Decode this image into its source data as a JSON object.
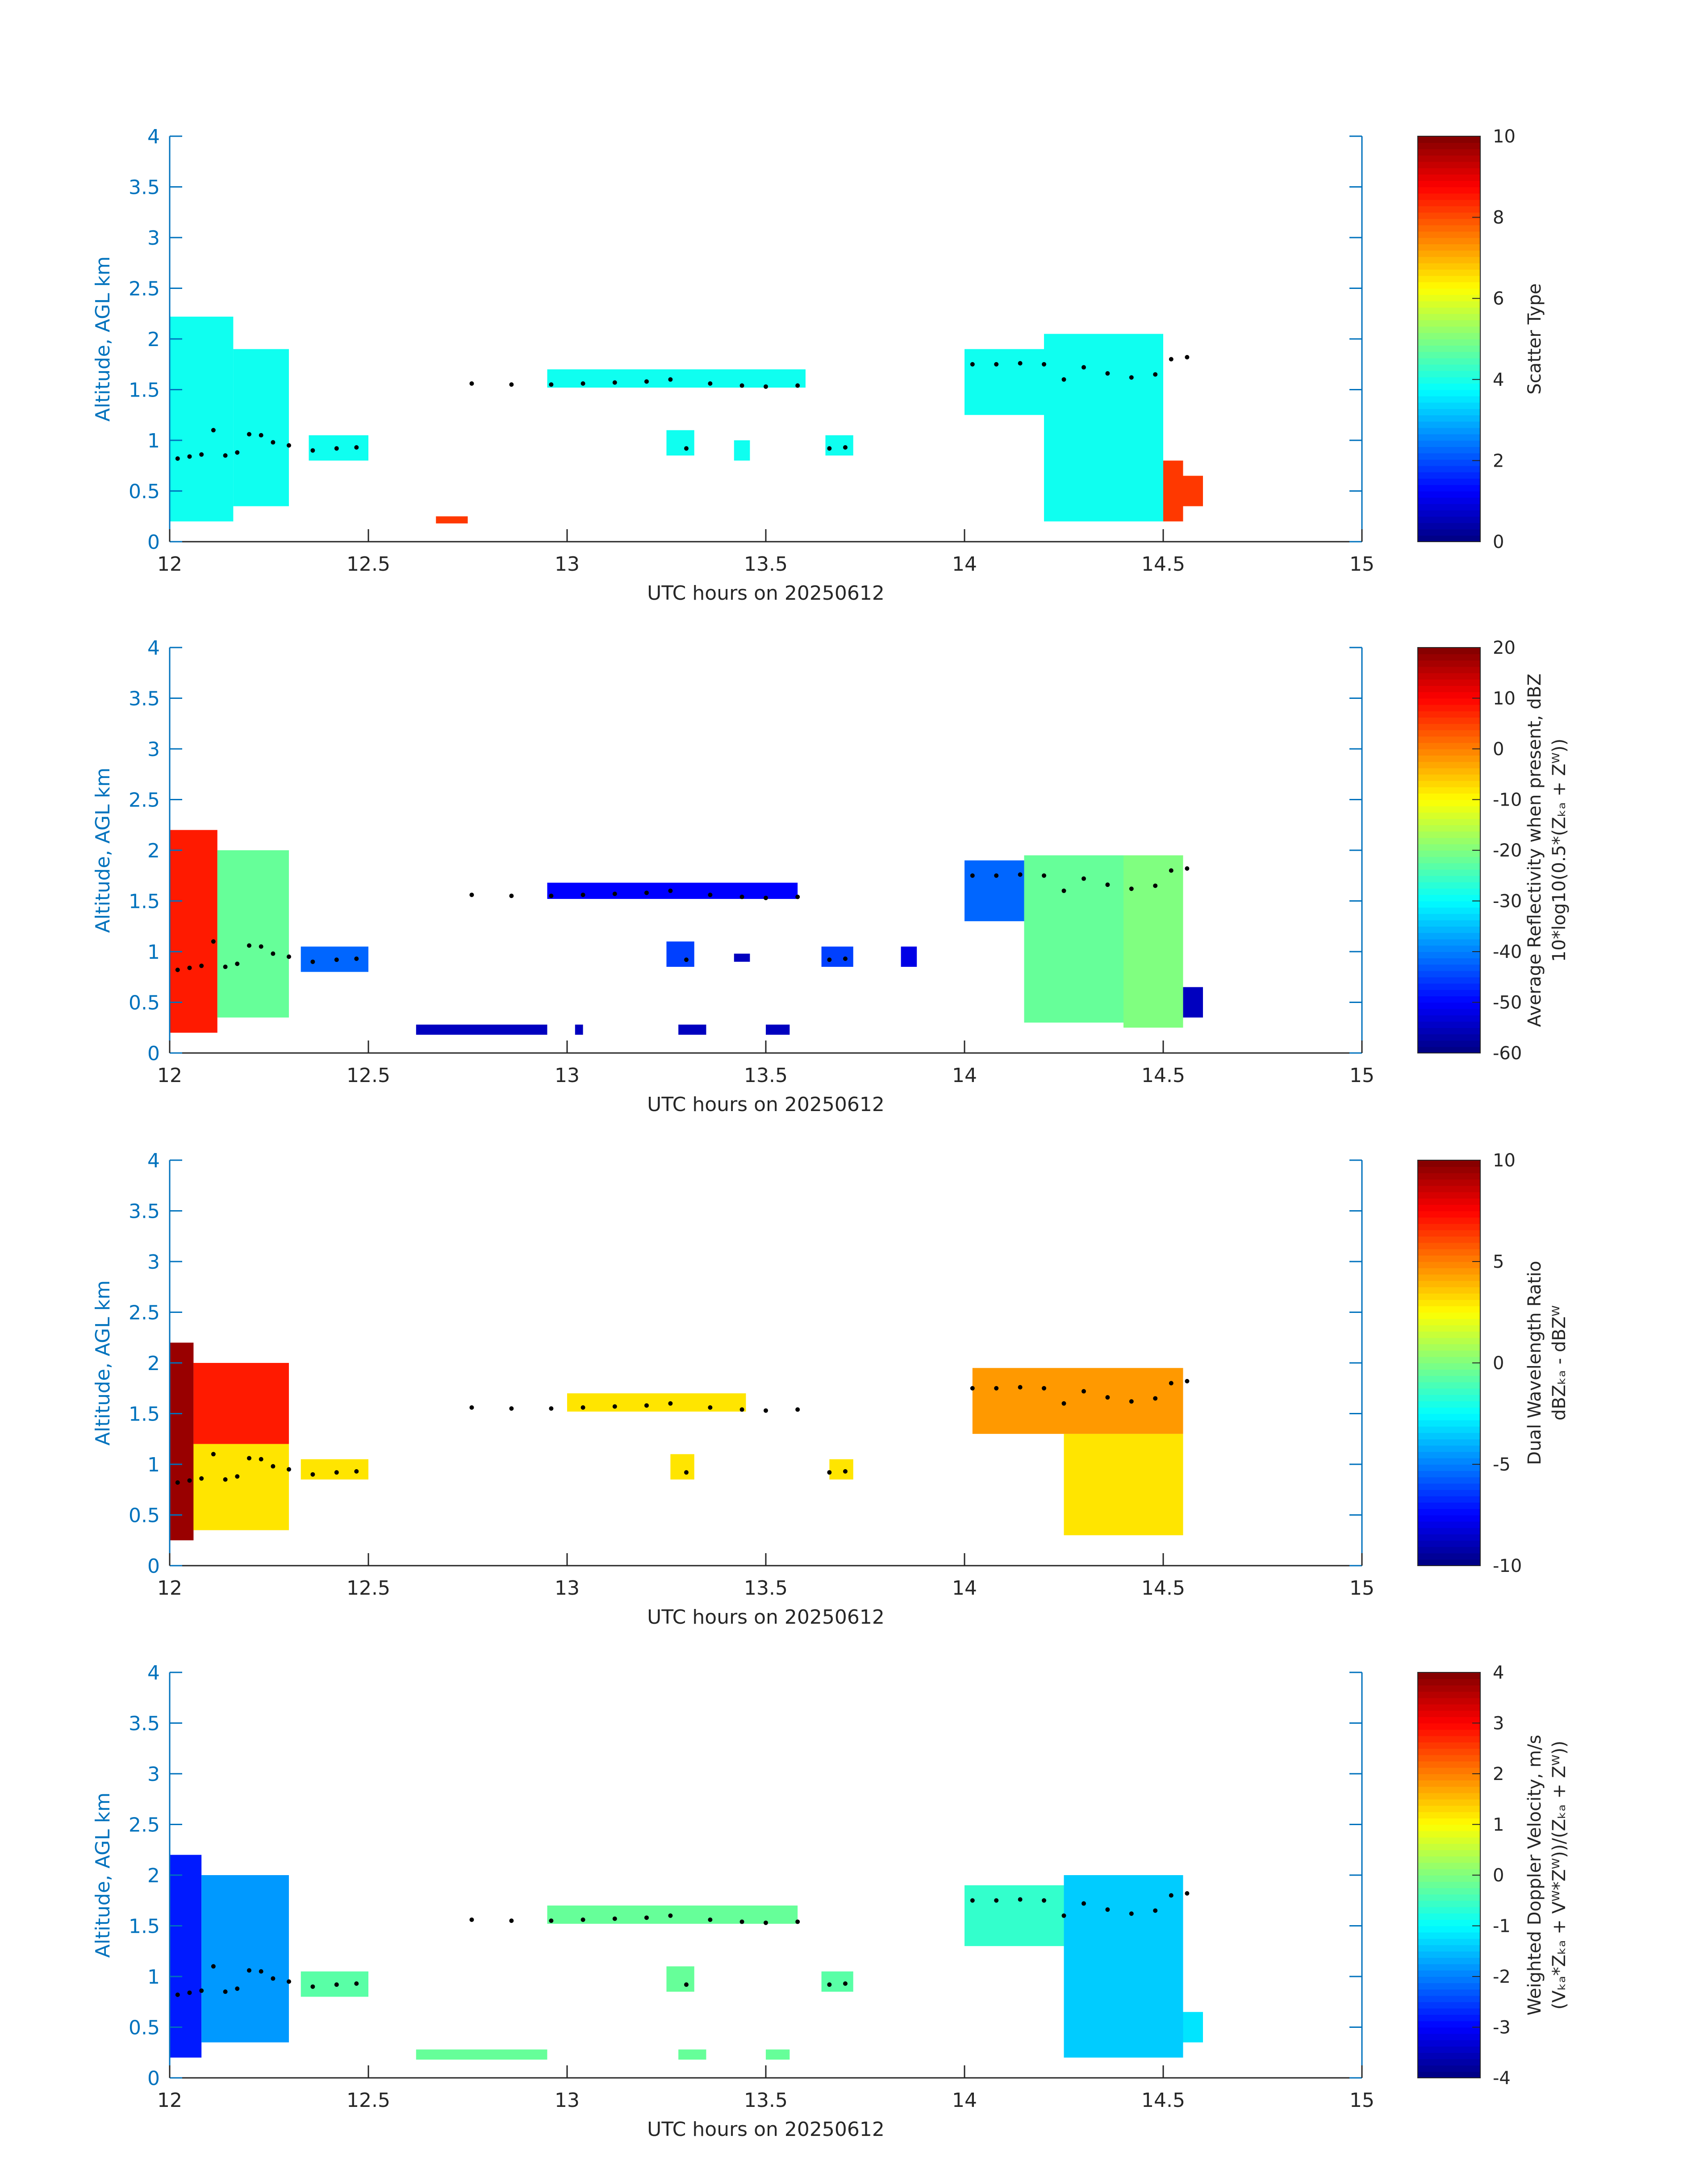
{
  "figure": {
    "colors": {
      "axis": "#0072bd",
      "text": "#262626",
      "marker": "#000000",
      "background": "#ffffff"
    }
  },
  "chart_data": [
    {
      "type": "heatmap",
      "title": "",
      "xlabel": "UTC hours on 20250612",
      "ylabel": "Altitude, AGL km",
      "xlim": [
        12,
        15
      ],
      "ylim": [
        0,
        4
      ],
      "x_ticks": [
        "12",
        "12.5",
        "13",
        "13.5",
        "14",
        "14.5",
        "15"
      ],
      "y_ticks": [
        "0",
        "0.5",
        "1",
        "1.5",
        "2",
        "2.5",
        "3",
        "3.5",
        "4"
      ],
      "colorbar": {
        "label": "Scatter Type",
        "label2": "",
        "clim": [
          0,
          10
        ],
        "ticks": [
          "0",
          "2",
          "4",
          "6",
          "8",
          "10"
        ]
      },
      "grid": false,
      "regions": [
        {
          "x": [
            12.0,
            12.16
          ],
          "y": [
            0.2,
            2.22
          ],
          "value": 3.9
        },
        {
          "x": [
            12.16,
            12.3
          ],
          "y": [
            0.35,
            1.9
          ],
          "value": 3.9
        },
        {
          "x": [
            12.35,
            12.5
          ],
          "y": [
            0.8,
            1.05
          ],
          "value": 3.9
        },
        {
          "x": [
            12.95,
            13.6
          ],
          "y": [
            1.52,
            1.7
          ],
          "value": 3.9
        },
        {
          "x": [
            13.25,
            13.32
          ],
          "y": [
            0.85,
            1.1
          ],
          "value": 3.9
        },
        {
          "x": [
            13.42,
            13.46
          ],
          "y": [
            0.8,
            1.0
          ],
          "value": 3.9
        },
        {
          "x": [
            13.65,
            13.72
          ],
          "y": [
            0.85,
            1.05
          ],
          "value": 3.9
        },
        {
          "x": [
            14.0,
            14.2
          ],
          "y": [
            1.25,
            1.9
          ],
          "value": 3.9
        },
        {
          "x": [
            14.2,
            14.5
          ],
          "y": [
            0.2,
            2.05
          ],
          "value": 3.9
        },
        {
          "x": [
            14.5,
            14.55
          ],
          "y": [
            0.2,
            0.8
          ],
          "value": 8.2
        },
        {
          "x": [
            14.55,
            14.6
          ],
          "y": [
            0.35,
            0.65
          ],
          "value": 8.2
        },
        {
          "x": [
            12.67,
            12.75
          ],
          "y": [
            0.18,
            0.25
          ],
          "value": 8.2
        }
      ],
      "cloud_base_x": [
        12.02,
        12.05,
        12.08,
        12.11,
        12.14,
        12.17,
        12.2,
        12.23,
        12.26,
        12.3,
        12.36,
        12.42,
        12.47,
        12.76,
        12.86,
        12.96,
        13.04,
        13.12,
        13.2,
        13.26,
        13.3,
        13.36,
        13.44,
        13.5,
        13.58,
        13.66,
        13.7,
        14.02,
        14.08,
        14.14,
        14.2,
        14.25,
        14.3,
        14.36,
        14.42,
        14.48,
        14.52,
        14.56
      ],
      "cloud_base_y": [
        0.82,
        0.84,
        0.86,
        1.1,
        0.85,
        0.88,
        1.06,
        1.05,
        0.98,
        0.95,
        0.9,
        0.92,
        0.93,
        1.56,
        1.55,
        1.55,
        1.56,
        1.57,
        1.58,
        1.6,
        0.92,
        1.56,
        1.54,
        1.53,
        1.54,
        0.92,
        0.93,
        1.75,
        1.75,
        1.76,
        1.75,
        1.6,
        1.72,
        1.66,
        1.62,
        1.65,
        1.8,
        1.82
      ]
    },
    {
      "type": "heatmap",
      "title": "",
      "xlabel": "UTC hours on 20250612",
      "ylabel": "Altitude, AGL km",
      "xlim": [
        12,
        15
      ],
      "ylim": [
        0,
        4
      ],
      "x_ticks": [
        "12",
        "12.5",
        "13",
        "13.5",
        "14",
        "14.5",
        "15"
      ],
      "y_ticks": [
        "0",
        "0.5",
        "1",
        "1.5",
        "2",
        "2.5",
        "3",
        "3.5",
        "4"
      ],
      "colorbar": {
        "label": "Average Reflectivity when present, dBZ",
        "label2": "10*log10(0.5*(Zₖₐ + Zᵂ))",
        "clim": [
          -60,
          20
        ],
        "ticks": [
          "-60",
          "-50",
          "-40",
          "-30",
          "-20",
          "-10",
          "0",
          "10",
          "20"
        ]
      },
      "grid": false,
      "regions": [
        {
          "x": [
            12.0,
            12.12
          ],
          "y": [
            0.2,
            2.2
          ],
          "value": 8
        },
        {
          "x": [
            12.12,
            12.3
          ],
          "y": [
            0.35,
            2.0
          ],
          "value": -22
        },
        {
          "x": [
            12.33,
            12.5
          ],
          "y": [
            0.8,
            1.05
          ],
          "value": -42
        },
        {
          "x": [
            12.95,
            13.58
          ],
          "y": [
            1.52,
            1.68
          ],
          "value": -50
        },
        {
          "x": [
            13.25,
            13.32
          ],
          "y": [
            0.85,
            1.1
          ],
          "value": -45
        },
        {
          "x": [
            13.42,
            13.46
          ],
          "y": [
            0.9,
            0.98
          ],
          "value": -55
        },
        {
          "x": [
            13.64,
            13.72
          ],
          "y": [
            0.85,
            1.05
          ],
          "value": -45
        },
        {
          "x": [
            13.84,
            13.88
          ],
          "y": [
            0.85,
            1.05
          ],
          "value": -52
        },
        {
          "x": [
            12.62,
            12.95
          ],
          "y": [
            0.18,
            0.28
          ],
          "value": -55
        },
        {
          "x": [
            13.02,
            13.04
          ],
          "y": [
            0.18,
            0.28
          ],
          "value": -55
        },
        {
          "x": [
            13.28,
            13.35
          ],
          "y": [
            0.18,
            0.28
          ],
          "value": -55
        },
        {
          "x": [
            13.5,
            13.56
          ],
          "y": [
            0.18,
            0.28
          ],
          "value": -55
        },
        {
          "x": [
            14.0,
            14.15
          ],
          "y": [
            1.3,
            1.9
          ],
          "value": -42
        },
        {
          "x": [
            14.15,
            14.4
          ],
          "y": [
            0.3,
            1.95
          ],
          "value": -22
        },
        {
          "x": [
            14.4,
            14.55
          ],
          "y": [
            0.25,
            1.95
          ],
          "value": -20
        },
        {
          "x": [
            14.55,
            14.6
          ],
          "y": [
            0.35,
            0.65
          ],
          "value": -55
        }
      ],
      "cloud_base_x": [
        12.02,
        12.05,
        12.08,
        12.11,
        12.14,
        12.17,
        12.2,
        12.23,
        12.26,
        12.3,
        12.36,
        12.42,
        12.47,
        12.76,
        12.86,
        12.96,
        13.04,
        13.12,
        13.2,
        13.26,
        13.3,
        13.36,
        13.44,
        13.5,
        13.58,
        13.66,
        13.7,
        14.02,
        14.08,
        14.14,
        14.2,
        14.25,
        14.3,
        14.36,
        14.42,
        14.48,
        14.52,
        14.56
      ],
      "cloud_base_y": [
        0.82,
        0.84,
        0.86,
        1.1,
        0.85,
        0.88,
        1.06,
        1.05,
        0.98,
        0.95,
        0.9,
        0.92,
        0.93,
        1.56,
        1.55,
        1.55,
        1.56,
        1.57,
        1.58,
        1.6,
        0.92,
        1.56,
        1.54,
        1.53,
        1.54,
        0.92,
        0.93,
        1.75,
        1.75,
        1.76,
        1.75,
        1.6,
        1.72,
        1.66,
        1.62,
        1.65,
        1.8,
        1.82
      ]
    },
    {
      "type": "heatmap",
      "title": "",
      "xlabel": "UTC hours on 20250612",
      "ylabel": "Altitude, AGL km",
      "xlim": [
        12,
        15
      ],
      "ylim": [
        0,
        4
      ],
      "x_ticks": [
        "12",
        "12.5",
        "13",
        "13.5",
        "14",
        "14.5",
        "15"
      ],
      "y_ticks": [
        "0",
        "0.5",
        "1",
        "1.5",
        "2",
        "2.5",
        "3",
        "3.5",
        "4"
      ],
      "colorbar": {
        "label": "Dual Wavelength Ratio",
        "label2": "dBZₖₐ - dBZᵂ",
        "clim": [
          -10,
          10
        ],
        "ticks": [
          "-10",
          "-5",
          "0",
          "5",
          "10"
        ]
      },
      "grid": false,
      "regions": [
        {
          "x": [
            12.0,
            12.06
          ],
          "y": [
            0.25,
            2.2
          ],
          "value": 9.5
        },
        {
          "x": [
            12.06,
            12.3
          ],
          "y": [
            1.2,
            2.0
          ],
          "value": 7
        },
        {
          "x": [
            12.06,
            12.3
          ],
          "y": [
            0.35,
            1.2
          ],
          "value": 3
        },
        {
          "x": [
            12.33,
            12.5
          ],
          "y": [
            0.85,
            1.05
          ],
          "value": 3
        },
        {
          "x": [
            13.0,
            13.45
          ],
          "y": [
            1.52,
            1.7
          ],
          "value": 3
        },
        {
          "x": [
            13.26,
            13.32
          ],
          "y": [
            0.85,
            1.1
          ],
          "value": 3
        },
        {
          "x": [
            13.66,
            13.72
          ],
          "y": [
            0.85,
            1.05
          ],
          "value": 3
        },
        {
          "x": [
            14.02,
            14.55
          ],
          "y": [
            1.3,
            1.95
          ],
          "value": 4.5
        },
        {
          "x": [
            14.25,
            14.55
          ],
          "y": [
            0.3,
            1.3
          ],
          "value": 3
        }
      ],
      "cloud_base_x": [
        12.02,
        12.05,
        12.08,
        12.11,
        12.14,
        12.17,
        12.2,
        12.23,
        12.26,
        12.3,
        12.36,
        12.42,
        12.47,
        12.76,
        12.86,
        12.96,
        13.04,
        13.12,
        13.2,
        13.26,
        13.3,
        13.36,
        13.44,
        13.5,
        13.58,
        13.66,
        13.7,
        14.02,
        14.08,
        14.14,
        14.2,
        14.25,
        14.3,
        14.36,
        14.42,
        14.48,
        14.52,
        14.56
      ],
      "cloud_base_y": [
        0.82,
        0.84,
        0.86,
        1.1,
        0.85,
        0.88,
        1.06,
        1.05,
        0.98,
        0.95,
        0.9,
        0.92,
        0.93,
        1.56,
        1.55,
        1.55,
        1.56,
        1.57,
        1.58,
        1.6,
        0.92,
        1.56,
        1.54,
        1.53,
        1.54,
        0.92,
        0.93,
        1.75,
        1.75,
        1.76,
        1.75,
        1.6,
        1.72,
        1.66,
        1.62,
        1.65,
        1.8,
        1.82
      ]
    },
    {
      "type": "heatmap",
      "title": "",
      "xlabel": "UTC hours on 20250612",
      "ylabel": "Altitude, AGL km",
      "xlim": [
        12,
        15
      ],
      "ylim": [
        0,
        4
      ],
      "x_ticks": [
        "12",
        "12.5",
        "13",
        "13.5",
        "14",
        "14.5",
        "15"
      ],
      "y_ticks": [
        "0",
        "0.5",
        "1",
        "1.5",
        "2",
        "2.5",
        "3",
        "3.5",
        "4"
      ],
      "colorbar": {
        "label": "Weighted Doppler Velocity, m/s",
        "label2": "(Vₖₐ*Zₖₐ + Vᵂ*Zᵂ))/(Zₖₐ + Zᵂ))",
        "clim": [
          -4,
          4
        ],
        "ticks": [
          "-4",
          "-3",
          "-2",
          "-1",
          "0",
          "1",
          "2",
          "3",
          "4"
        ]
      },
      "grid": false,
      "regions": [
        {
          "x": [
            12.0,
            12.08
          ],
          "y": [
            0.2,
            2.2
          ],
          "value": -2.8
        },
        {
          "x": [
            12.08,
            12.3
          ],
          "y": [
            0.35,
            2.0
          ],
          "value": -1.8
        },
        {
          "x": [
            12.33,
            12.5
          ],
          "y": [
            0.8,
            1.05
          ],
          "value": -0.3
        },
        {
          "x": [
            12.95,
            13.58
          ],
          "y": [
            1.52,
            1.7
          ],
          "value": -0.2
        },
        {
          "x": [
            13.25,
            13.32
          ],
          "y": [
            0.85,
            1.1
          ],
          "value": -0.2
        },
        {
          "x": [
            13.64,
            13.72
          ],
          "y": [
            0.85,
            1.05
          ],
          "value": -0.3
        },
        {
          "x": [
            14.0,
            14.25
          ],
          "y": [
            1.3,
            1.9
          ],
          "value": -0.6
        },
        {
          "x": [
            14.25,
            14.55
          ],
          "y": [
            0.2,
            2.0
          ],
          "value": -1.4
        },
        {
          "x": [
            14.55,
            14.6
          ],
          "y": [
            0.35,
            0.65
          ],
          "value": -1.2
        },
        {
          "x": [
            12.62,
            12.95
          ],
          "y": [
            0.18,
            0.28
          ],
          "value": -0.2
        },
        {
          "x": [
            13.28,
            13.35
          ],
          "y": [
            0.18,
            0.28
          ],
          "value": -0.2
        },
        {
          "x": [
            13.5,
            13.56
          ],
          "y": [
            0.18,
            0.28
          ],
          "value": -0.2
        }
      ],
      "cloud_base_x": [
        12.02,
        12.05,
        12.08,
        12.11,
        12.14,
        12.17,
        12.2,
        12.23,
        12.26,
        12.3,
        12.36,
        12.42,
        12.47,
        12.76,
        12.86,
        12.96,
        13.04,
        13.12,
        13.2,
        13.26,
        13.3,
        13.36,
        13.44,
        13.5,
        13.58,
        13.66,
        13.7,
        14.02,
        14.08,
        14.14,
        14.2,
        14.25,
        14.3,
        14.36,
        14.42,
        14.48,
        14.52,
        14.56
      ],
      "cloud_base_y": [
        0.82,
        0.84,
        0.86,
        1.1,
        0.85,
        0.88,
        1.06,
        1.05,
        0.98,
        0.95,
        0.9,
        0.92,
        0.93,
        1.56,
        1.55,
        1.55,
        1.56,
        1.57,
        1.58,
        1.6,
        0.92,
        1.56,
        1.54,
        1.53,
        1.54,
        0.92,
        0.93,
        1.75,
        1.75,
        1.76,
        1.75,
        1.6,
        1.72,
        1.66,
        1.62,
        1.65,
        1.8,
        1.82
      ]
    }
  ]
}
